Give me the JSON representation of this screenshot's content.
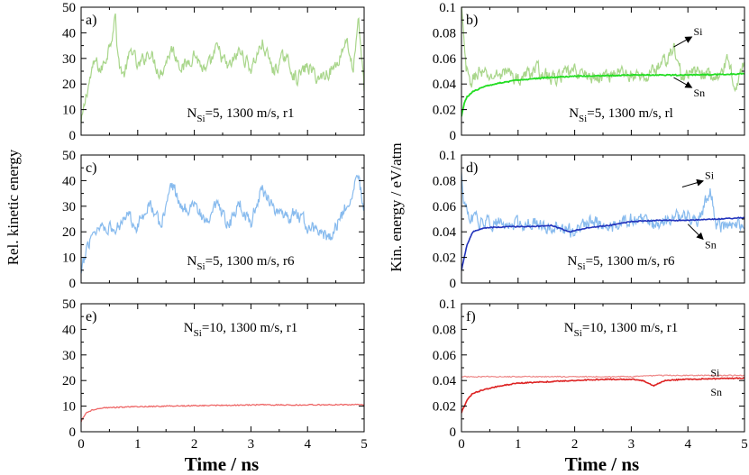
{
  "chart_data": {
    "ylabel_left": "Rel. kinetic energy",
    "ylabel_right": "Kin. energy / eV/atm",
    "xlabel": "Time / ns",
    "panels": [
      {
        "id": "a",
        "label": "a)",
        "type": "line",
        "annotation": {
          "main": "N",
          "sub": "Si",
          "rest": "=5, 1300 m/s, r1"
        },
        "xlim": [
          0,
          5
        ],
        "ylim": [
          0,
          50
        ],
        "xticks": [
          "0",
          "1",
          "2",
          "3",
          "4",
          "5"
        ],
        "yticks": [
          "0",
          "10",
          "20",
          "30",
          "40",
          "50"
        ],
        "series": [
          {
            "color": "#a9d68b",
            "width": 1.2,
            "noisy": true,
            "points": [
              [
                0,
                4
              ],
              [
                0.05,
                10
              ],
              [
                0.1,
                17
              ],
              [
                0.18,
                24
              ],
              [
                0.25,
                29
              ],
              [
                0.35,
                25
              ],
              [
                0.45,
                31
              ],
              [
                0.55,
                40
              ],
              [
                0.6,
                48
              ],
              [
                0.65,
                30
              ],
              [
                0.75,
                23
              ],
              [
                0.9,
                34
              ],
              [
                1.0,
                26
              ],
              [
                1.2,
                33
              ],
              [
                1.4,
                24
              ],
              [
                1.6,
                34
              ],
              [
                1.8,
                26
              ],
              [
                2.0,
                32
              ],
              [
                2.2,
                24
              ],
              [
                2.4,
                34
              ],
              [
                2.6,
                26
              ],
              [
                2.8,
                33
              ],
              [
                3.0,
                26
              ],
              [
                3.2,
                36
              ],
              [
                3.4,
                25
              ],
              [
                3.6,
                31
              ],
              [
                3.8,
                22
              ],
              [
                4.0,
                27
              ],
              [
                4.2,
                22
              ],
              [
                4.5,
                27
              ],
              [
                4.7,
                38
              ],
              [
                4.8,
                24
              ],
              [
                4.9,
                44
              ],
              [
                4.97,
                27
              ],
              [
                5.0,
                19
              ]
            ]
          }
        ],
        "series_labels": []
      },
      {
        "id": "b",
        "label": "b)",
        "type": "line",
        "annotation": {
          "main": "N",
          "sub": "Si",
          "rest": "=5, 1300 m/s, rl"
        },
        "xlim": [
          0,
          5
        ],
        "ylim": [
          0,
          0.1
        ],
        "xticks": [
          "0",
          "1",
          "2",
          "3",
          "4",
          "5"
        ],
        "yticks": [
          "0",
          "0.02",
          "0.04",
          "0.06",
          "0.08",
          "0.1"
        ],
        "series": [
          {
            "color": "#a9d68b",
            "width": 1.2,
            "noisy": true,
            "points": [
              [
                0,
                0.1
              ],
              [
                0.03,
                0.08
              ],
              [
                0.08,
                0.052
              ],
              [
                0.15,
                0.04
              ],
              [
                0.3,
                0.05
              ],
              [
                0.5,
                0.045
              ],
              [
                0.8,
                0.05
              ],
              [
                1.0,
                0.043
              ],
              [
                1.3,
                0.052
              ],
              [
                1.6,
                0.044
              ],
              [
                2.0,
                0.05
              ],
              [
                2.4,
                0.044
              ],
              [
                2.8,
                0.05
              ],
              [
                3.2,
                0.044
              ],
              [
                3.6,
                0.058
              ],
              [
                3.75,
                0.068
              ],
              [
                3.9,
                0.045
              ],
              [
                4.2,
                0.05
              ],
              [
                4.5,
                0.044
              ],
              [
                4.7,
                0.058
              ],
              [
                4.85,
                0.038
              ],
              [
                5.0,
                0.058
              ]
            ]
          },
          {
            "color": "#22dd22",
            "width": 1.8,
            "noisy": false,
            "points": [
              [
                0,
                0.015
              ],
              [
                0.05,
                0.025
              ],
              [
                0.1,
                0.03
              ],
              [
                0.2,
                0.034
              ],
              [
                0.4,
                0.038
              ],
              [
                0.7,
                0.041
              ],
              [
                1.0,
                0.043
              ],
              [
                1.5,
                0.045
              ],
              [
                2.0,
                0.046
              ],
              [
                3.0,
                0.047
              ],
              [
                4.0,
                0.047
              ],
              [
                5.0,
                0.048
              ]
            ]
          }
        ],
        "series_labels": [
          {
            "text": "Si",
            "x": 4.1,
            "y": 0.081,
            "ax": 3.75,
            "ay": 0.069
          },
          {
            "text": "Sn",
            "x": 4.1,
            "y": 0.033,
            "ax": 3.75,
            "ay": 0.045
          }
        ]
      },
      {
        "id": "c",
        "label": "c)",
        "type": "line",
        "annotation": {
          "main": "N",
          "sub": "Si",
          "rest": "=5, 1300 m/s, r6"
        },
        "xlim": [
          0,
          5
        ],
        "ylim": [
          0,
          50
        ],
        "xticks": [
          "0",
          "1",
          "2",
          "3",
          "4",
          "5"
        ],
        "yticks": [
          "0",
          "10",
          "20",
          "30",
          "40",
          "50"
        ],
        "series": [
          {
            "color": "#88bbee",
            "width": 1.2,
            "noisy": true,
            "points": [
              [
                0,
                3
              ],
              [
                0.05,
                8
              ],
              [
                0.1,
                14
              ],
              [
                0.2,
                20
              ],
              [
                0.4,
                23
              ],
              [
                0.6,
                20
              ],
              [
                0.8,
                28
              ],
              [
                1.0,
                22
              ],
              [
                1.2,
                32
              ],
              [
                1.4,
                22
              ],
              [
                1.6,
                39
              ],
              [
                1.8,
                28
              ],
              [
                2.0,
                32
              ],
              [
                2.2,
                22
              ],
              [
                2.4,
                30
              ],
              [
                2.6,
                22
              ],
              [
                2.8,
                31
              ],
              [
                3.0,
                24
              ],
              [
                3.2,
                37
              ],
              [
                3.4,
                30
              ],
              [
                3.6,
                24
              ],
              [
                3.8,
                28
              ],
              [
                4.0,
                22
              ],
              [
                4.2,
                20
              ],
              [
                4.4,
                18
              ],
              [
                4.6,
                26
              ],
              [
                4.8,
                37
              ],
              [
                4.9,
                42
              ],
              [
                5.0,
                27
              ]
            ]
          }
        ],
        "series_labels": []
      },
      {
        "id": "d",
        "label": "d)",
        "type": "line",
        "annotation": {
          "main": "N",
          "sub": "Si",
          "rest": "=5, 1300 m/s, r6"
        },
        "xlim": [
          0,
          5
        ],
        "ylim": [
          0,
          0.1
        ],
        "xticks": [
          "0",
          "1",
          "2",
          "3",
          "4",
          "5"
        ],
        "yticks": [
          "0",
          "0.02",
          "0.04",
          "0.06",
          "0.08",
          "0.1"
        ],
        "series": [
          {
            "color": "#88bbee",
            "width": 1.2,
            "noisy": true,
            "points": [
              [
                0,
                0.085
              ],
              [
                0.05,
                0.06
              ],
              [
                0.15,
                0.05
              ],
              [
                0.4,
                0.048
              ],
              [
                0.8,
                0.045
              ],
              [
                1.2,
                0.048
              ],
              [
                1.6,
                0.043
              ],
              [
                2.0,
                0.04
              ],
              [
                2.3,
                0.05
              ],
              [
                2.6,
                0.042
              ],
              [
                3.0,
                0.05
              ],
              [
                3.4,
                0.045
              ],
              [
                3.8,
                0.052
              ],
              [
                4.2,
                0.05
              ],
              [
                4.4,
                0.073
              ],
              [
                4.5,
                0.045
              ],
              [
                4.8,
                0.044
              ],
              [
                5.0,
                0.046
              ]
            ]
          },
          {
            "color": "#2233bb",
            "width": 1.6,
            "noisy": false,
            "points": [
              [
                0,
                0.01
              ],
              [
                0.05,
                0.02
              ],
              [
                0.1,
                0.03
              ],
              [
                0.2,
                0.04
              ],
              [
                0.4,
                0.043
              ],
              [
                0.8,
                0.044
              ],
              [
                1.2,
                0.044
              ],
              [
                1.6,
                0.045
              ],
              [
                1.9,
                0.04
              ],
              [
                2.2,
                0.043
              ],
              [
                2.6,
                0.045
              ],
              [
                3.0,
                0.048
              ],
              [
                3.5,
                0.049
              ],
              [
                4.0,
                0.049
              ],
              [
                5.0,
                0.051
              ]
            ]
          }
        ],
        "series_labels": [
          {
            "text": "Si",
            "x": 4.3,
            "y": 0.084,
            "ax": 3.9,
            "ay": 0.075
          },
          {
            "text": "Sn",
            "x": 4.3,
            "y": 0.03,
            "ax": 4.0,
            "ay": 0.046
          }
        ]
      },
      {
        "id": "e",
        "label": "e)",
        "type": "line",
        "annotation": {
          "main": "N",
          "sub": "Si",
          "rest": "=10, 1300 m/s, r1"
        },
        "xlim": [
          0,
          5
        ],
        "ylim": [
          0,
          50
        ],
        "xticks": [
          "0",
          "1",
          "2",
          "3",
          "4",
          "5"
        ],
        "yticks": [
          "0",
          "10",
          "20",
          "30",
          "40",
          "50"
        ],
        "series": [
          {
            "color": "#ee6666",
            "width": 1.3,
            "noisy": false,
            "points": [
              [
                0,
                4
              ],
              [
                0.05,
                6
              ],
              [
                0.1,
                7.5
              ],
              [
                0.2,
                8.5
              ],
              [
                0.4,
                9.3
              ],
              [
                0.8,
                9.7
              ],
              [
                1.5,
                10
              ],
              [
                2.0,
                10.2
              ],
              [
                2.5,
                10.3
              ],
              [
                3.0,
                10.5
              ],
              [
                4.0,
                10.5
              ],
              [
                5.0,
                10.6
              ]
            ]
          }
        ],
        "series_labels": []
      },
      {
        "id": "f",
        "label": "f)",
        "type": "line",
        "annotation": {
          "main": "N",
          "sub": "Si",
          "rest": "=10, 1300 m/s, r1"
        },
        "xlim": [
          0,
          5
        ],
        "ylim": [
          0,
          0.1
        ],
        "xticks": [
          "0",
          "1",
          "2",
          "3",
          "4",
          "5"
        ],
        "yticks": [
          "0",
          "0.02",
          "0.04",
          "0.06",
          "0.08",
          "0.1"
        ],
        "series": [
          {
            "color": "#ee8888",
            "width": 1.2,
            "noisy": false,
            "points": [
              [
                0,
                0.043
              ],
              [
                1.0,
                0.043
              ],
              [
                2.0,
                0.043
              ],
              [
                3.0,
                0.043
              ],
              [
                3.5,
                0.044
              ],
              [
                4.0,
                0.044
              ],
              [
                5.0,
                0.044
              ]
            ]
          },
          {
            "color": "#dd2222",
            "width": 1.6,
            "noisy": false,
            "points": [
              [
                0,
                0.015
              ],
              [
                0.05,
                0.02
              ],
              [
                0.1,
                0.025
              ],
              [
                0.2,
                0.03
              ],
              [
                0.4,
                0.033
              ],
              [
                0.7,
                0.036
              ],
              [
                1.0,
                0.038
              ],
              [
                1.5,
                0.039
              ],
              [
                2.0,
                0.04
              ],
              [
                2.5,
                0.041
              ],
              [
                3.0,
                0.041
              ],
              [
                3.2,
                0.04
              ],
              [
                3.4,
                0.036
              ],
              [
                3.6,
                0.04
              ],
              [
                4.0,
                0.041
              ],
              [
                5.0,
                0.042
              ]
            ]
          }
        ],
        "series_labels": [
          {
            "text": "Si",
            "x": 4.4,
            "y": 0.046,
            "ax": null,
            "ay": null
          },
          {
            "text": "Sn",
            "x": 4.4,
            "y": 0.031,
            "ax": null,
            "ay": null
          }
        ]
      }
    ]
  }
}
